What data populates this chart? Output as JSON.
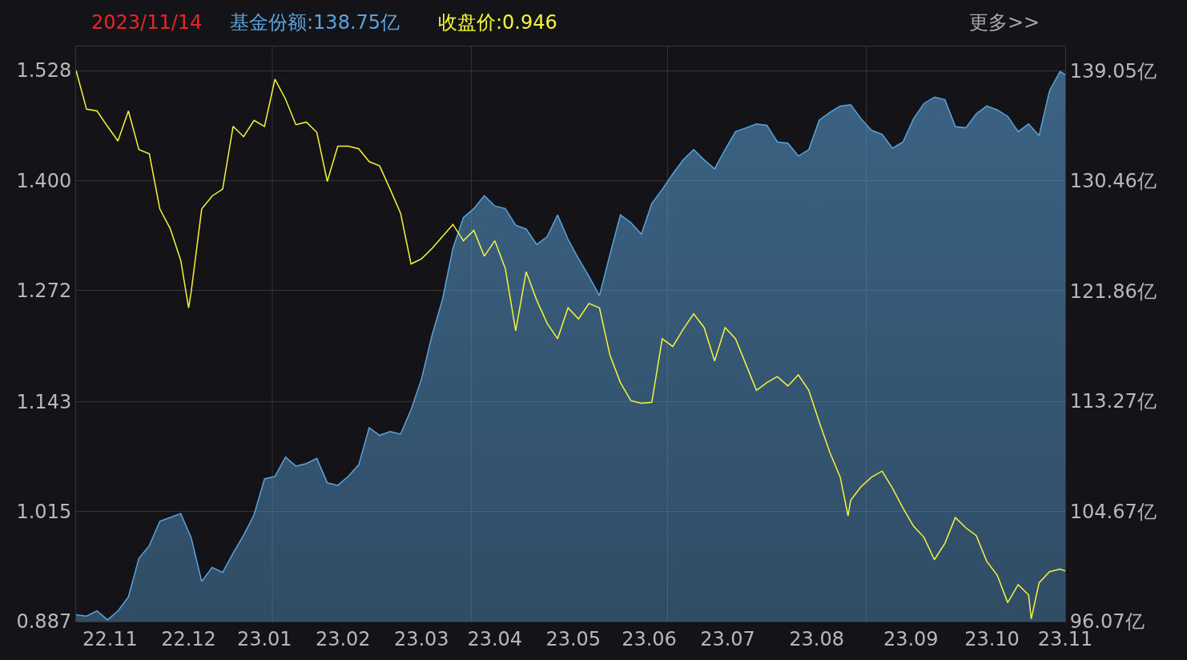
{
  "chart_data": {
    "type": "line",
    "annotations": [
      "2023/11/14",
      "基金份额:138.75亿",
      "收盘价:0.946",
      "更多>>"
    ],
    "x": [
      "2022-11-01",
      "2022-11-05",
      "2022-11-09",
      "2022-11-13",
      "2022-11-17",
      "2022-11-21",
      "2022-11-25",
      "2022-11-29",
      "2022-12-03",
      "2022-12-07",
      "2022-12-11",
      "2022-12-15",
      "2022-12-19",
      "2022-12-23",
      "2022-12-27",
      "2022-12-31",
      "2023-01-04",
      "2023-01-08",
      "2023-01-12",
      "2023-01-16",
      "2023-01-20",
      "2023-01-24",
      "2023-01-28",
      "2023-02-01",
      "2023-02-05",
      "2023-02-09",
      "2023-02-13",
      "2023-02-17",
      "2023-02-21",
      "2023-02-25",
      "2023-03-01",
      "2023-03-05",
      "2023-03-09",
      "2023-03-13",
      "2023-03-17",
      "2023-03-21",
      "2023-03-25",
      "2023-03-29",
      "2023-04-02",
      "2023-04-06",
      "2023-04-10",
      "2023-04-14",
      "2023-04-18",
      "2023-04-22",
      "2023-04-26",
      "2023-04-30",
      "2023-05-04",
      "2023-05-08",
      "2023-05-12",
      "2023-05-16",
      "2023-05-20",
      "2023-05-24",
      "2023-05-28",
      "2023-06-01",
      "2023-06-05",
      "2023-06-09",
      "2023-06-13",
      "2023-06-17",
      "2023-06-21",
      "2023-06-25",
      "2023-06-29",
      "2023-07-03",
      "2023-07-07",
      "2023-07-11",
      "2023-07-15",
      "2023-07-19",
      "2023-07-23",
      "2023-07-27",
      "2023-07-31",
      "2023-08-04",
      "2023-08-08",
      "2023-08-12",
      "2023-08-16",
      "2023-08-20",
      "2023-08-24",
      "2023-08-28",
      "2023-09-01",
      "2023-09-05",
      "2023-09-09",
      "2023-09-13",
      "2023-09-17",
      "2023-09-21",
      "2023-09-25",
      "2023-09-29",
      "2023-10-03",
      "2023-10-07",
      "2023-10-11",
      "2023-10-15",
      "2023-10-19",
      "2023-10-23",
      "2023-10-27",
      "2023-10-31",
      "2023-11-04",
      "2023-11-08",
      "2023-11-12",
      "2023-11-14"
    ],
    "series": [
      {
        "type": "area",
        "axis": "y2",
        "color": "#5ba3dc",
        "values": [
          96.6,
          96.5,
          96.9,
          96.2,
          96.9,
          98.0,
          101.0,
          102.0,
          103.9,
          104.2,
          104.5,
          102.6,
          99.2,
          100.3,
          99.9,
          101.4,
          102.8,
          104.4,
          107.2,
          107.4,
          108.9,
          108.2,
          108.4,
          108.8,
          106.9,
          106.7,
          107.4,
          108.3,
          111.2,
          110.6,
          110.9,
          110.7,
          112.6,
          115.0,
          118.4,
          121.2,
          125.2,
          127.6,
          128.3,
          129.3,
          128.5,
          128.3,
          127.0,
          126.7,
          125.5,
          126.1,
          127.8,
          125.9,
          124.4,
          123.0,
          121.5,
          124.7,
          127.8,
          127.2,
          126.3,
          128.7,
          129.8,
          131.0,
          132.1,
          132.9,
          132.1,
          131.4,
          132.9,
          134.3,
          134.6,
          134.9,
          134.8,
          133.5,
          133.4,
          132.4,
          132.9,
          135.2,
          135.8,
          136.3,
          136.4,
          135.3,
          134.4,
          134.1,
          133.0,
          133.5,
          135.3,
          136.5,
          137.0,
          136.8,
          134.7,
          134.6,
          135.7,
          136.3,
          136.0,
          135.5,
          134.3,
          134.9,
          134.0,
          137.5,
          139.0,
          138.75
        ]
      },
      {
        "color": "#f5f53a",
        "x": [
          "2022-11-01",
          "2022-11-05",
          "2022-11-09",
          "2022-11-13",
          "2022-11-17",
          "2022-11-21",
          "2022-11-25",
          "2022-11-29",
          "2022-12-03",
          "2022-12-07",
          "2022-12-11",
          "2022-12-14",
          "2022-12-15",
          "2022-12-19",
          "2022-12-23",
          "2022-12-27",
          "2022-12-31",
          "2023-01-04",
          "2023-01-08",
          "2023-01-12",
          "2023-01-16",
          "2023-01-20",
          "2023-01-24",
          "2023-01-28",
          "2023-02-01",
          "2023-02-05",
          "2023-02-09",
          "2023-02-13",
          "2023-02-17",
          "2023-02-21",
          "2023-02-25",
          "2023-03-01",
          "2023-03-05",
          "2023-03-09",
          "2023-03-13",
          "2023-03-17",
          "2023-03-21",
          "2023-03-25",
          "2023-03-29",
          "2023-04-02",
          "2023-04-06",
          "2023-04-10",
          "2023-04-14",
          "2023-04-18",
          "2023-04-22",
          "2023-04-26",
          "2023-04-30",
          "2023-05-04",
          "2023-05-08",
          "2023-05-12",
          "2023-05-16",
          "2023-05-20",
          "2023-05-24",
          "2023-05-28",
          "2023-06-01",
          "2023-06-05",
          "2023-06-09",
          "2023-06-13",
          "2023-06-17",
          "2023-06-21",
          "2023-06-25",
          "2023-06-29",
          "2023-07-03",
          "2023-07-07",
          "2023-07-11",
          "2023-07-15",
          "2023-07-19",
          "2023-07-23",
          "2023-07-27",
          "2023-07-31",
          "2023-08-04",
          "2023-08-08",
          "2023-08-12",
          "2023-08-16",
          "2023-08-20",
          "2023-08-23",
          "2023-08-24",
          "2023-08-28",
          "2023-09-01",
          "2023-09-05",
          "2023-09-09",
          "2023-09-13",
          "2023-09-17",
          "2023-09-21",
          "2023-09-25",
          "2023-09-29",
          "2023-10-03",
          "2023-10-07",
          "2023-10-11",
          "2023-10-15",
          "2023-10-19",
          "2023-10-23",
          "2023-10-27",
          "2023-10-31",
          "2023-11-01",
          "2023-11-04",
          "2023-11-08",
          "2023-11-12",
          "2023-11-14"
        ],
        "values": [
          1.528,
          1.483,
          1.481,
          1.463,
          1.446,
          1.481,
          1.436,
          1.431,
          1.367,
          1.344,
          1.307,
          1.252,
          1.271,
          1.367,
          1.382,
          1.39,
          1.463,
          1.451,
          1.47,
          1.463,
          1.518,
          1.495,
          1.465,
          1.468,
          1.456,
          1.399,
          1.44,
          1.44,
          1.437,
          1.422,
          1.417,
          1.39,
          1.362,
          1.303,
          1.309,
          1.321,
          1.335,
          1.349,
          1.33,
          1.342,
          1.312,
          1.33,
          1.298,
          1.225,
          1.294,
          1.261,
          1.234,
          1.216,
          1.252,
          1.239,
          1.257,
          1.252,
          1.197,
          1.165,
          1.144,
          1.141,
          1.142,
          1.216,
          1.207,
          1.227,
          1.245,
          1.229,
          1.19,
          1.229,
          1.216,
          1.186,
          1.156,
          1.165,
          1.172,
          1.161,
          1.174,
          1.156,
          1.119,
          1.084,
          1.055,
          1.01,
          1.028,
          1.044,
          1.055,
          1.062,
          1.042,
          1.019,
          0.998,
          0.985,
          0.959,
          0.978,
          1.008,
          0.996,
          0.987,
          0.957,
          0.941,
          0.909,
          0.93,
          0.918,
          0.89,
          0.932,
          0.945,
          0.948,
          0.946
        ]
      }
    ],
    "xlim": [
      "2022-11-01",
      "2023-11-14"
    ],
    "xticks": [
      {
        "value": "2022-11-14",
        "label": "22.11"
      },
      {
        "value": "2022-12-14",
        "label": "22.12"
      },
      {
        "value": "2023-01-12",
        "label": "23.01"
      },
      {
        "value": "2023-02-11",
        "label": "23.02"
      },
      {
        "value": "2023-03-13",
        "label": "23.03"
      },
      {
        "value": "2023-04-10",
        "label": "23.04"
      },
      {
        "value": "2023-05-10",
        "label": "23.05"
      },
      {
        "value": "2023-06-08",
        "label": "23.06"
      },
      {
        "value": "2023-07-08",
        "label": "23.07"
      },
      {
        "value": "2023-08-11",
        "label": "23.08"
      },
      {
        "value": "2023-09-16",
        "label": "23.09"
      },
      {
        "value": "2023-10-17",
        "label": "23.10"
      },
      {
        "value": "2023-11-14",
        "label": "23.11"
      },
      {
        "value": "2023-01-15",
        "label": null
      },
      {
        "value": "2023-04-01",
        "label": null
      },
      {
        "value": "2023-06-15",
        "label": null
      },
      {
        "value": "2023-08-30",
        "label": null
      }
    ],
    "ylim": [
      0.887,
      1.556
    ],
    "yticks": [
      {
        "value": 1.528,
        "label": "1.528"
      },
      {
        "value": 1.4,
        "label": "1.400"
      },
      {
        "value": 1.272,
        "label": "1.272"
      },
      {
        "value": 1.143,
        "label": "1.143"
      },
      {
        "value": 1.015,
        "label": "1.015"
      },
      {
        "value": 0.887,
        "label": "0.887"
      }
    ],
    "y2lim": [
      96.07,
      140.95
    ],
    "y2ticks": [
      {
        "value": 139.05,
        "label": "139.05亿"
      },
      {
        "value": 130.46,
        "label": "130.46亿"
      },
      {
        "value": 121.86,
        "label": "121.86亿"
      },
      {
        "value": 113.27,
        "label": "113.27亿"
      },
      {
        "value": 104.67,
        "label": "104.67亿"
      },
      {
        "value": 96.07,
        "label": "96.07亿"
      }
    ],
    "grid": true
  }
}
